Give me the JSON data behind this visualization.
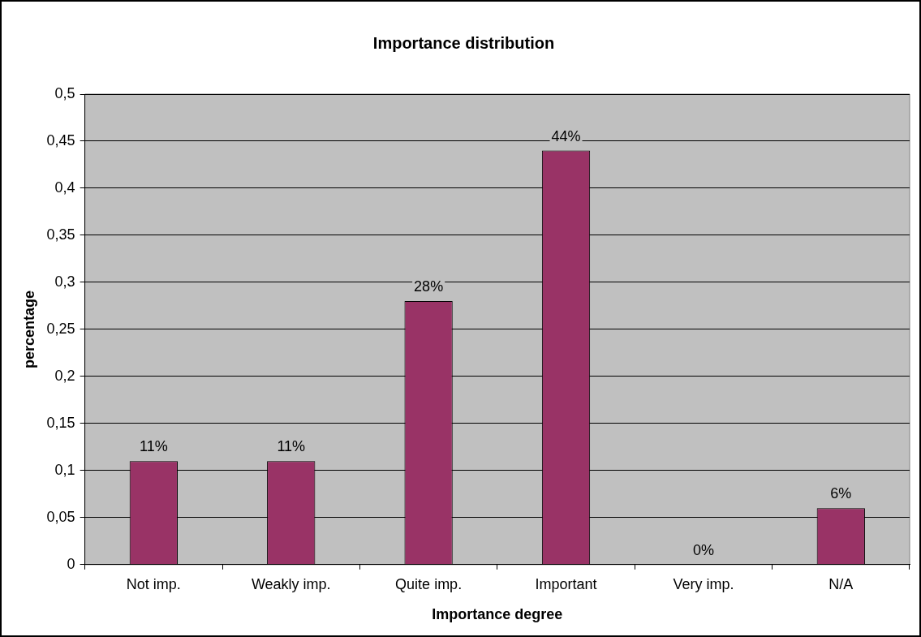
{
  "chart_data": {
    "type": "bar",
    "title": "Importance distribution",
    "xlabel": "Importance degree",
    "ylabel": "percentage",
    "categories": [
      "Not imp.",
      "Weakly imp.",
      "Quite imp.",
      "Important",
      "Very imp.",
      "N/A"
    ],
    "values": [
      0.11,
      0.11,
      0.28,
      0.44,
      0,
      0.06
    ],
    "color": "#993366",
    "value_labels": [
      "11%",
      "11%",
      "28%",
      "44%",
      "0%",
      "6%"
    ],
    "ylim": [
      0,
      0.5
    ],
    "yticks": [
      0,
      {
        "value": 0.05,
        "label": "0,05"
      },
      {
        "value": 0.1,
        "label": "0,1"
      },
      {
        "value": 0.15,
        "label": "0,15"
      },
      {
        "value": 0.2,
        "label": "0,2"
      },
      {
        "value": 0.25,
        "label": "0,25"
      },
      {
        "value": 0.3,
        "label": "0,3"
      },
      {
        "value": 0.35,
        "label": "0,35"
      },
      {
        "value": 0.4,
        "label": "0,4"
      },
      {
        "value": 0.45,
        "label": "0,45"
      },
      {
        "value": 0.5,
        "label": "0,5"
      }
    ],
    "grid": "y"
  }
}
